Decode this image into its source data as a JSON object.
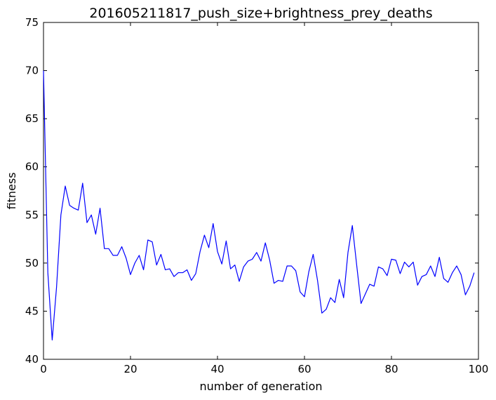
{
  "chart_data": {
    "type": "line",
    "title": "201605211817_push_size+brightness_prey_deaths",
    "xlabel": "number of generation",
    "ylabel": "fitness",
    "xlim": [
      0,
      100
    ],
    "ylim": [
      40,
      75
    ],
    "xticks": [
      0,
      20,
      40,
      60,
      80,
      100
    ],
    "yticks": [
      40,
      45,
      50,
      55,
      60,
      65,
      70,
      75
    ],
    "grid": false,
    "series": [
      {
        "color": "#0000ff",
        "x": [
          0,
          1,
          2,
          3,
          4,
          5,
          6,
          7,
          8,
          9,
          10,
          11,
          12,
          13,
          14,
          15,
          16,
          17,
          18,
          19,
          20,
          21,
          22,
          23,
          24,
          25,
          26,
          27,
          28,
          29,
          30,
          31,
          32,
          33,
          34,
          35,
          36,
          37,
          38,
          39,
          40,
          41,
          42,
          43,
          44,
          45,
          46,
          47,
          48,
          49,
          50,
          51,
          52,
          53,
          54,
          55,
          56,
          57,
          58,
          59,
          60,
          61,
          62,
          63,
          64,
          65,
          66,
          67,
          68,
          69,
          70,
          71,
          72,
          73,
          74,
          75,
          76,
          77,
          78,
          79,
          80,
          81,
          82,
          83,
          84,
          85,
          86,
          87,
          88,
          89,
          90,
          91,
          92,
          93,
          94,
          95,
          96,
          97,
          98,
          99
        ],
        "values": [
          70.0,
          49.0,
          42.0,
          47.5,
          55.0,
          58.0,
          56.0,
          55.7,
          55.5,
          58.3,
          54.2,
          55.0,
          53.0,
          55.7,
          51.5,
          51.5,
          50.8,
          50.8,
          51.7,
          50.5,
          48.8,
          50.0,
          50.8,
          49.3,
          52.4,
          52.2,
          49.8,
          50.9,
          49.3,
          49.4,
          48.6,
          49.0,
          49.0,
          49.3,
          48.2,
          48.9,
          51.2,
          52.9,
          51.6,
          54.1,
          51.2,
          49.9,
          52.3,
          49.4,
          49.8,
          48.1,
          49.6,
          50.2,
          50.4,
          51.1,
          50.2,
          52.1,
          50.3,
          47.9,
          48.2,
          48.1,
          49.7,
          49.7,
          49.2,
          47.0,
          46.5,
          49.1,
          50.9,
          48.2,
          44.8,
          45.2,
          46.4,
          45.9,
          48.3,
          46.4,
          51.1,
          53.9,
          49.8,
          45.8,
          46.8,
          47.8,
          47.6,
          49.6,
          49.4,
          48.7,
          50.4,
          50.3,
          48.9,
          50.1,
          49.6,
          50.1,
          47.7,
          48.6,
          48.8,
          49.7,
          48.6,
          50.6,
          48.4,
          48.0,
          49.0,
          49.7,
          48.8,
          46.7,
          47.6,
          49.0
        ]
      }
    ]
  }
}
